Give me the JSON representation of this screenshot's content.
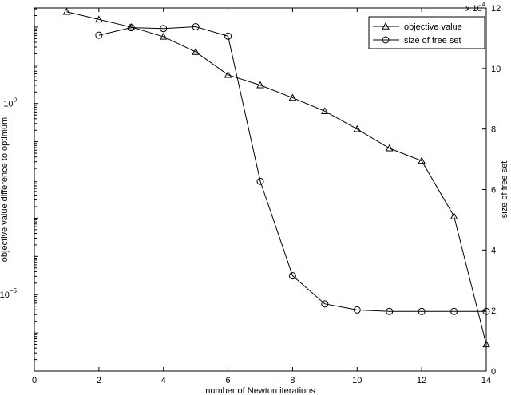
{
  "chart_data": {
    "type": "line",
    "xlabel": "number of Newton iterations",
    "ylabel_left": "objective value difference to optimum",
    "ylabel_right": "size of free set",
    "xlim": [
      0,
      14
    ],
    "xticks": [
      "0",
      "2",
      "4",
      "6",
      "8",
      "10",
      "12",
      "14"
    ],
    "left_axis": {
      "scale": "log",
      "exponents": [
        -7,
        2.5
      ],
      "ticks": [
        {
          "base": "10",
          "exp": "0",
          "value": 0
        },
        {
          "base": "10",
          "exp": "−5",
          "value": -5
        }
      ]
    },
    "right_axis": {
      "scale": "linear",
      "ylim": [
        0,
        120000
      ],
      "ticks": [
        "0",
        "2",
        "4",
        "6",
        "8",
        "10",
        "12"
      ],
      "multiplier_base": "x 10",
      "multiplier_exp": "4"
    },
    "grid": false,
    "legend_position": "top-right",
    "series": [
      {
        "name": "objective value",
        "marker": "triangle",
        "axis": "left",
        "x": [
          1,
          2,
          3,
          4,
          5,
          6,
          7,
          8,
          9,
          10,
          11,
          12,
          13,
          14
        ],
        "log10_y": [
          2.4,
          2.2,
          2.0,
          1.75,
          1.35,
          0.75,
          0.48,
          0.15,
          -0.2,
          -0.67,
          -1.17,
          -1.5,
          -2.95,
          -6.3
        ]
      },
      {
        "name": "size of free set",
        "marker": "circle",
        "axis": "right",
        "x": [
          2,
          3,
          4,
          5,
          6,
          7,
          8,
          9,
          10,
          11,
          12,
          13,
          14
        ],
        "y": [
          111000,
          113500,
          113200,
          113800,
          110700,
          62700,
          31500,
          22200,
          20200,
          19700,
          19700,
          19700,
          19700
        ]
      }
    ]
  }
}
